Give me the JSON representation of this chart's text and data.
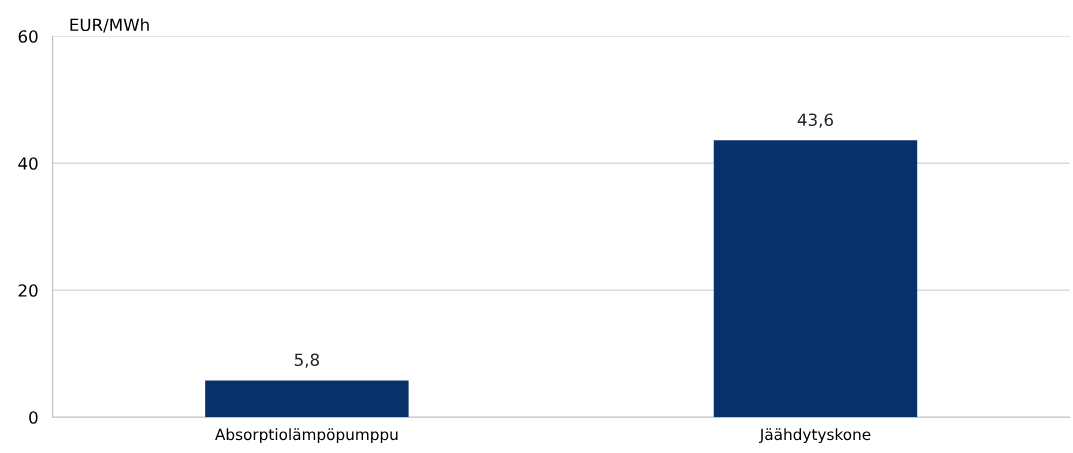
{
  "chart_data": {
    "type": "bar",
    "ylabel": "EUR/MWh",
    "categories": [
      "Absorptiolämpöpumppu",
      "Jäähdytyskone"
    ],
    "values": [
      5.8,
      43.6
    ],
    "value_labels": [
      "5,8",
      "43,6"
    ],
    "color": "#073169",
    "ylim": [
      0,
      60
    ],
    "yticks": [
      0,
      20,
      40,
      60
    ],
    "grid": "y",
    "legend": false
  }
}
